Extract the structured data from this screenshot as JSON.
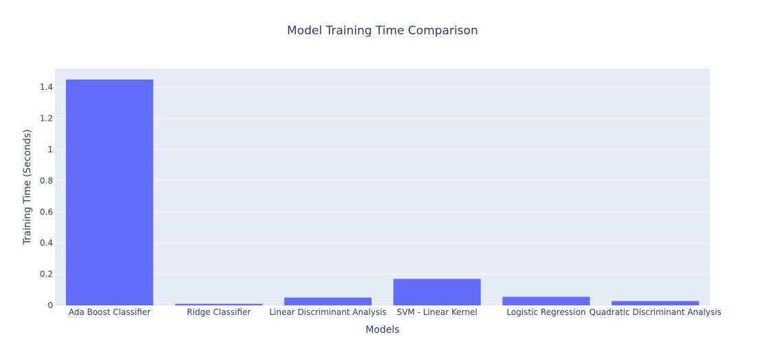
{
  "chart_data": {
    "type": "bar",
    "title": "Model Training Time Comparison",
    "xlabel": "Models",
    "ylabel": "Training Time (Seconds)",
    "categories": [
      "Ada Boost Classifier",
      "Ridge Classifier",
      "Linear Discriminant Analysis",
      "SVM - Linear Kernel",
      "Logistic Regression",
      "Quadratic Discriminant Analysis"
    ],
    "values": [
      1.45,
      0.01,
      0.05,
      0.17,
      0.055,
      0.028
    ],
    "ylim": [
      0,
      1.52
    ],
    "yticks": [
      0,
      0.2,
      0.4,
      0.6,
      0.8,
      1,
      1.2,
      1.4
    ],
    "ytick_labels": [
      "0",
      "0.2",
      "0.4",
      "0.6",
      "0.8",
      "1",
      "1.2",
      "1.4"
    ],
    "grid": true,
    "colors": {
      "bar": "#636efa",
      "plot_bg": "#e5ecf6",
      "grid": "#ffffff",
      "text": "#2a3f5f"
    }
  }
}
